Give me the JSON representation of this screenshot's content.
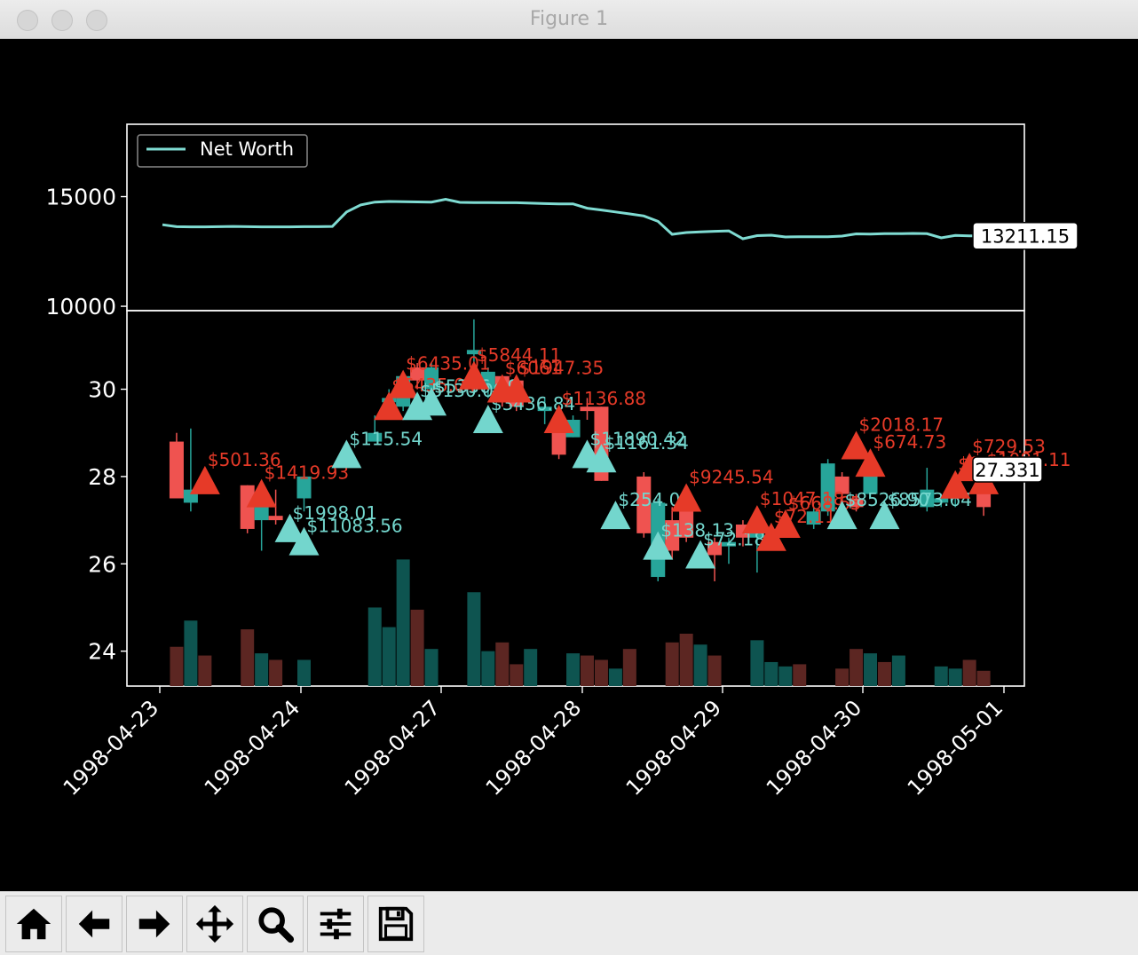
{
  "window": {
    "title": "Figure 1"
  },
  "toolbar": {
    "buttons": [
      {
        "name": "home",
        "icon": "home-icon"
      },
      {
        "name": "back",
        "icon": "arrow-left-icon"
      },
      {
        "name": "forward",
        "icon": "arrow-right-icon"
      },
      {
        "name": "pan",
        "icon": "move-icon"
      },
      {
        "name": "zoom",
        "icon": "magnifier-icon"
      },
      {
        "name": "configure-subplots",
        "icon": "sliders-icon"
      },
      {
        "name": "save",
        "icon": "floppy-disk-icon"
      }
    ]
  },
  "colors": {
    "up": "#27a59a",
    "down": "#ef5350",
    "net_worth_line": "#7fdbd2",
    "buy_marker": "#73d6cd",
    "sell_marker": "#e63a28",
    "up_volume": "#0e5450",
    "down_volume": "#5c2622"
  },
  "chart_data": [
    {
      "type": "line",
      "legend": "top-left",
      "ylim": [
        9800,
        18300
      ],
      "y_ticks": [
        10000,
        15000
      ],
      "x": [
        0,
        1,
        2,
        3,
        4,
        5,
        6,
        7,
        8,
        9,
        10,
        11,
        12,
        13,
        14,
        15,
        16,
        17,
        18,
        19,
        20,
        21,
        22,
        23,
        24,
        25,
        26,
        27,
        28,
        29,
        30,
        31,
        32,
        33,
        34,
        35,
        36,
        37,
        38,
        39,
        40,
        41,
        42,
        43,
        44,
        45,
        46,
        47,
        48,
        49,
        50,
        51,
        52,
        53,
        54,
        55,
        56,
        57,
        58
      ],
      "series": [
        {
          "name": "Net Worth",
          "values": [
            13720,
            13630,
            13620,
            13620,
            13630,
            13640,
            13630,
            13620,
            13620,
            13620,
            13630,
            13630,
            13640,
            14300,
            14620,
            14750,
            14780,
            14770,
            14760,
            14750,
            14880,
            14740,
            14730,
            14730,
            14720,
            14720,
            14700,
            14680,
            14670,
            14670,
            14470,
            14390,
            14300,
            14210,
            14120,
            13870,
            13280,
            13360,
            13390,
            13420,
            13440,
            13080,
            13220,
            13240,
            13160,
            13170,
            13170,
            13170,
            13200,
            13300,
            13290,
            13310,
            13310,
            13320,
            13310,
            13120,
            13230,
            13211.15,
            13211.15
          ]
        }
      ],
      "value_label": "13211.15"
    },
    {
      "type": "candlestick",
      "ylim": [
        23.2,
        31.8
      ],
      "y_ticks": [
        24,
        26,
        28,
        30
      ],
      "x_tick_labels": [
        "1998-04-23",
        "1998-04-24",
        "1998-04-27",
        "1998-04-28",
        "1998-04-29",
        "1998-04-30",
        "1998-05-01"
      ],
      "candles": [
        {
          "i": 1,
          "open": 28.8,
          "close": 27.5,
          "high": 29.0,
          "low": 27.5
        },
        {
          "i": 2,
          "open": 27.4,
          "close": 27.7,
          "high": 29.1,
          "low": 27.2
        },
        {
          "i": 6,
          "open": 27.8,
          "close": 26.8,
          "high": 27.8,
          "low": 26.7
        },
        {
          "i": 7,
          "open": 27.0,
          "close": 27.6,
          "high": 27.7,
          "low": 26.3
        },
        {
          "i": 8,
          "open": 27.1,
          "close": 27.0,
          "high": 27.7,
          "low": 26.9
        },
        {
          "i": 10,
          "open": 27.5,
          "close": 28.0,
          "high": 28.0,
          "low": 27.2
        },
        {
          "i": 15,
          "open": 28.8,
          "close": 29.0,
          "high": 29.4,
          "low": 28.8
        },
        {
          "i": 16,
          "open": 29.7,
          "close": 29.8,
          "high": 30.0,
          "low": 29.4
        },
        {
          "i": 17,
          "open": 29.6,
          "close": 30.3,
          "high": 30.4,
          "low": 29.5
        },
        {
          "i": 18,
          "open": 30.5,
          "close": 30.2,
          "high": 30.6,
          "low": 30.0
        },
        {
          "i": 19,
          "open": 30.0,
          "close": 30.5,
          "high": 30.6,
          "low": 29.5
        },
        {
          "i": 22,
          "open": 30.8,
          "close": 30.9,
          "high": 31.6,
          "low": 30.6
        },
        {
          "i": 23,
          "open": 30.0,
          "close": 30.4,
          "high": 30.5,
          "low": 29.8
        },
        {
          "i": 24,
          "open": 30.3,
          "close": 29.9,
          "high": 30.3,
          "low": 29.6
        },
        {
          "i": 25,
          "open": 30.2,
          "close": 29.6,
          "high": 30.2,
          "low": 29.5
        },
        {
          "i": 27,
          "open": 29.5,
          "close": 29.6,
          "high": 29.8,
          "low": 29.2
        },
        {
          "i": 28,
          "open": 29.2,
          "close": 28.5,
          "high": 29.2,
          "low": 28.4
        },
        {
          "i": 29,
          "open": 28.9,
          "close": 29.3,
          "high": 29.4,
          "low": 28.9
        },
        {
          "i": 30,
          "open": 29.6,
          "close": 29.5,
          "high": 29.8,
          "low": 29.3
        },
        {
          "i": 31,
          "open": 29.6,
          "close": 27.9,
          "high": 29.6,
          "low": 27.9
        },
        {
          "i": 34,
          "open": 28.0,
          "close": 26.7,
          "high": 28.1,
          "low": 26.6
        },
        {
          "i": 35,
          "open": 25.7,
          "close": 27.4,
          "high": 27.5,
          "low": 25.6
        },
        {
          "i": 36,
          "open": 27.0,
          "close": 26.3,
          "high": 27.3,
          "low": 26.1
        },
        {
          "i": 37,
          "open": 27.5,
          "close": 26.6,
          "high": 27.6,
          "low": 26.5
        },
        {
          "i": 39,
          "open": 26.5,
          "close": 26.2,
          "high": 26.6,
          "low": 25.6
        },
        {
          "i": 40,
          "open": 26.4,
          "close": 26.5,
          "high": 26.6,
          "low": 26.0
        },
        {
          "i": 41,
          "open": 26.9,
          "close": 26.6,
          "high": 27.0,
          "low": 26.4
        },
        {
          "i": 42,
          "open": 26.6,
          "close": 26.8,
          "high": 26.9,
          "low": 25.8
        },
        {
          "i": 43,
          "open": 26.7,
          "close": 26.8,
          "high": 26.9,
          "low": 26.5
        },
        {
          "i": 46,
          "open": 26.9,
          "close": 27.2,
          "high": 27.3,
          "low": 26.8
        },
        {
          "i": 47,
          "open": 27.2,
          "close": 28.3,
          "high": 28.4,
          "low": 27.1
        },
        {
          "i": 48,
          "open": 28.0,
          "close": 27.6,
          "high": 28.1,
          "low": 27.3
        },
        {
          "i": 49,
          "open": 27.5,
          "close": 27.3,
          "high": 27.6,
          "low": 27.2
        },
        {
          "i": 50,
          "open": 27.6,
          "close": 28.2,
          "high": 28.3,
          "low": 27.5
        },
        {
          "i": 54,
          "open": 27.3,
          "close": 27.7,
          "high": 28.2,
          "low": 27.2
        },
        {
          "i": 55,
          "open": 27.4,
          "close": 27.5,
          "high": 27.6,
          "low": 27.3
        },
        {
          "i": 56,
          "open": 27.5,
          "close": 27.8,
          "high": 27.9,
          "low": 27.3
        },
        {
          "i": 58,
          "open": 27.8,
          "close": 27.3,
          "high": 27.9,
          "low": 27.1
        }
      ],
      "volume": [
        {
          "i": 1,
          "h": 24.1
        },
        {
          "i": 2,
          "h": 24.7
        },
        {
          "i": 3,
          "h": 23.9
        },
        {
          "i": 6,
          "h": 24.5
        },
        {
          "i": 7,
          "h": 23.95
        },
        {
          "i": 8,
          "h": 23.8
        },
        {
          "i": 10,
          "h": 23.8
        },
        {
          "i": 15,
          "h": 25.0
        },
        {
          "i": 16,
          "h": 24.55
        },
        {
          "i": 17,
          "h": 26.1
        },
        {
          "i": 18,
          "h": 24.95
        },
        {
          "i": 19,
          "h": 24.05
        },
        {
          "i": 22,
          "h": 25.35
        },
        {
          "i": 23,
          "h": 24.0
        },
        {
          "i": 24,
          "h": 24.2
        },
        {
          "i": 25,
          "h": 23.7
        },
        {
          "i": 26,
          "h": 24.05
        },
        {
          "i": 29,
          "h": 23.95
        },
        {
          "i": 30,
          "h": 23.9
        },
        {
          "i": 31,
          "h": 23.8
        },
        {
          "i": 32,
          "h": 23.6
        },
        {
          "i": 33,
          "h": 24.05
        },
        {
          "i": 36,
          "h": 24.2
        },
        {
          "i": 37,
          "h": 24.4
        },
        {
          "i": 38,
          "h": 24.15
        },
        {
          "i": 39,
          "h": 23.9
        },
        {
          "i": 42,
          "h": 24.25
        },
        {
          "i": 43,
          "h": 23.75
        },
        {
          "i": 44,
          "h": 23.65
        },
        {
          "i": 45,
          "h": 23.7
        },
        {
          "i": 48,
          "h": 23.6
        },
        {
          "i": 49,
          "h": 24.05
        },
        {
          "i": 50,
          "h": 23.95
        },
        {
          "i": 51,
          "h": 23.75
        },
        {
          "i": 52,
          "h": 23.9
        },
        {
          "i": 55,
          "h": 23.65
        },
        {
          "i": 56,
          "h": 23.6
        },
        {
          "i": 57,
          "h": 23.8
        },
        {
          "i": 58,
          "h": 23.55
        }
      ],
      "trades": [
        {
          "i": 3,
          "type": "sell",
          "y": 27.9,
          "label": "$501.36"
        },
        {
          "i": 7,
          "type": "sell",
          "y": 27.6,
          "label": "$1419.93"
        },
        {
          "i": 9,
          "type": "buy",
          "y": 26.8,
          "label": "$1998.01"
        },
        {
          "i": 10,
          "type": "buy",
          "y": 26.5,
          "label": "$11083.56"
        },
        {
          "i": 13,
          "type": "buy",
          "y": 28.5,
          "label": "$115.54"
        },
        {
          "i": 16,
          "type": "sell",
          "y": 29.6,
          "label": "$6435.04"
        },
        {
          "i": 17,
          "type": "sell",
          "y": 30.1,
          "label": "$6435.01"
        },
        {
          "i": 18,
          "type": "buy",
          "y": 29.6,
          "label": "$5130.09"
        },
        {
          "i": 19,
          "type": "buy",
          "y": 29.7,
          "label": "$5336.09"
        },
        {
          "i": 22,
          "type": "sell",
          "y": 30.3,
          "label": "$5844.11"
        },
        {
          "i": 23,
          "type": "buy",
          "y": 29.3,
          "label": "$3436.84"
        },
        {
          "i": 24,
          "type": "sell",
          "y": 30.0,
          "label": "$6061"
        },
        {
          "i": 25,
          "type": "sell",
          "y": 30.0,
          "label": "$1947.35"
        },
        {
          "i": 28,
          "type": "sell",
          "y": 29.3,
          "label": "$1136.88"
        },
        {
          "i": 30,
          "type": "buy",
          "y": 28.5,
          "label": "$11890.42"
        },
        {
          "i": 31,
          "type": "buy",
          "y": 28.4,
          "label": "$1161.34"
        },
        {
          "i": 32,
          "type": "buy",
          "y": 27.1,
          "label": "$254.04"
        },
        {
          "i": 35,
          "type": "buy",
          "y": 26.4,
          "label": "$138.13"
        },
        {
          "i": 37,
          "type": "sell",
          "y": 27.5,
          "label": "$9245.54"
        },
        {
          "i": 38,
          "type": "buy",
          "y": 26.2,
          "label": "$72.18"
        },
        {
          "i": 42,
          "type": "sell",
          "y": 27.0,
          "label": "$1047.18"
        },
        {
          "i": 43,
          "type": "sell",
          "y": 26.6,
          "label": "$72.11"
        },
        {
          "i": 44,
          "type": "sell",
          "y": 26.9,
          "label": "$668.65"
        },
        {
          "i": 48,
          "type": "buy",
          "y": 27.1,
          "label": "$8526.90"
        },
        {
          "i": 49,
          "type": "sell",
          "y": 28.7,
          "label": "$2018.17"
        },
        {
          "i": 50,
          "type": "sell",
          "y": 28.3,
          "label": "$674.73"
        },
        {
          "i": 51,
          "type": "buy",
          "y": 27.1,
          "label": "$8573.64"
        },
        {
          "i": 56,
          "type": "sell",
          "y": 27.8,
          "label": "$8573.64"
        },
        {
          "i": 57,
          "type": "sell",
          "y": 28.2,
          "label": "$729.53"
        },
        {
          "i": 58,
          "type": "sell",
          "y": 27.9,
          "label": "$1081.11"
        }
      ],
      "value_label": "27.331"
    }
  ]
}
